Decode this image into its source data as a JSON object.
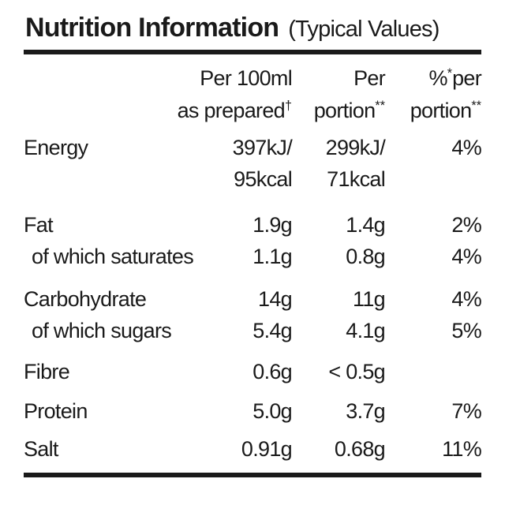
{
  "header": {
    "title": "Nutrition Information",
    "subtitle": "(Typical Values)",
    "columns": {
      "per100": {
        "line1": "Per 100ml",
        "line2": "as prepared",
        "line2_sup": "†"
      },
      "portion": {
        "line1": "Per",
        "line2": "portion",
        "line2_sup": "**"
      },
      "percent": {
        "line1_pre": "%",
        "line1_sup": "*",
        "line1": "per",
        "line2": "portion",
        "line2_sup": "**"
      }
    }
  },
  "rows": [
    {
      "label": "Energy",
      "per100": "397kJ/\n95kcal",
      "portion": "299kJ/\n71kcal",
      "percent": "4%"
    },
    {
      "label": "Fat",
      "per100": "1.9g",
      "portion": "1.4g",
      "percent": "2%"
    },
    {
      "label": "of which saturates",
      "per100": "1.1g",
      "portion": "0.8g",
      "percent": "4%"
    },
    {
      "label": "Carbohydrate",
      "per100": "14g",
      "portion": "11g",
      "percent": "4%"
    },
    {
      "label": "of which sugars",
      "per100": "5.4g",
      "portion": "4.1g",
      "percent": "5%"
    },
    {
      "label": "Fibre",
      "per100": "0.6g",
      "portion": "< 0.5g",
      "percent": ""
    },
    {
      "label": "Protein",
      "per100": "5.0g",
      "portion": "3.7g",
      "percent": "7%"
    },
    {
      "label": "Salt",
      "per100": "0.91g",
      "portion": "0.68g",
      "percent": "11%"
    }
  ],
  "colors": {
    "text": "#1a1a1a",
    "background": "#ffffff",
    "rule": "#1a1a1a"
  }
}
